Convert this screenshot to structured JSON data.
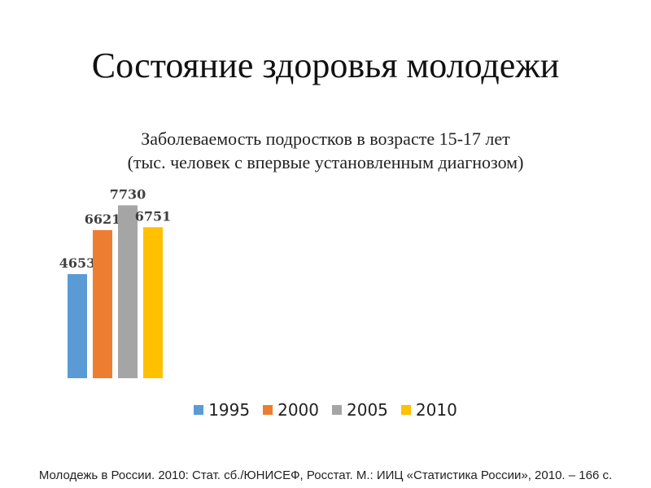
{
  "slide": {
    "title": "Состояние здоровья молодежи",
    "subtitle_line1": "Заболеваемость подростков в возрасте 15-17 лет",
    "subtitle_line2": "(тыс. человек с впервые установленным диагнозом)",
    "source": "Молодежь в России. 2010: Стат. сб./ЮНИСЕФ, Росстат. М.: ИИЦ «Статистика России», 2010. – 166 с."
  },
  "chart_data": {
    "type": "bar",
    "title": "",
    "xlabel": "",
    "ylabel": "",
    "categories": [
      ""
    ],
    "series": [
      {
        "name": "1995",
        "values": [
          4653
        ],
        "color": "#5b9bd5"
      },
      {
        "name": "2000",
        "values": [
          6621
        ],
        "color": "#ed7d31"
      },
      {
        "name": "2005",
        "values": [
          7730
        ],
        "color": "#a5a5a5"
      },
      {
        "name": "2010",
        "values": [
          6751
        ],
        "color": "#ffc000"
      }
    ],
    "ylim": [
      0,
      8000
    ],
    "grid": false,
    "data_labels": true,
    "legend_position": "bottom"
  }
}
